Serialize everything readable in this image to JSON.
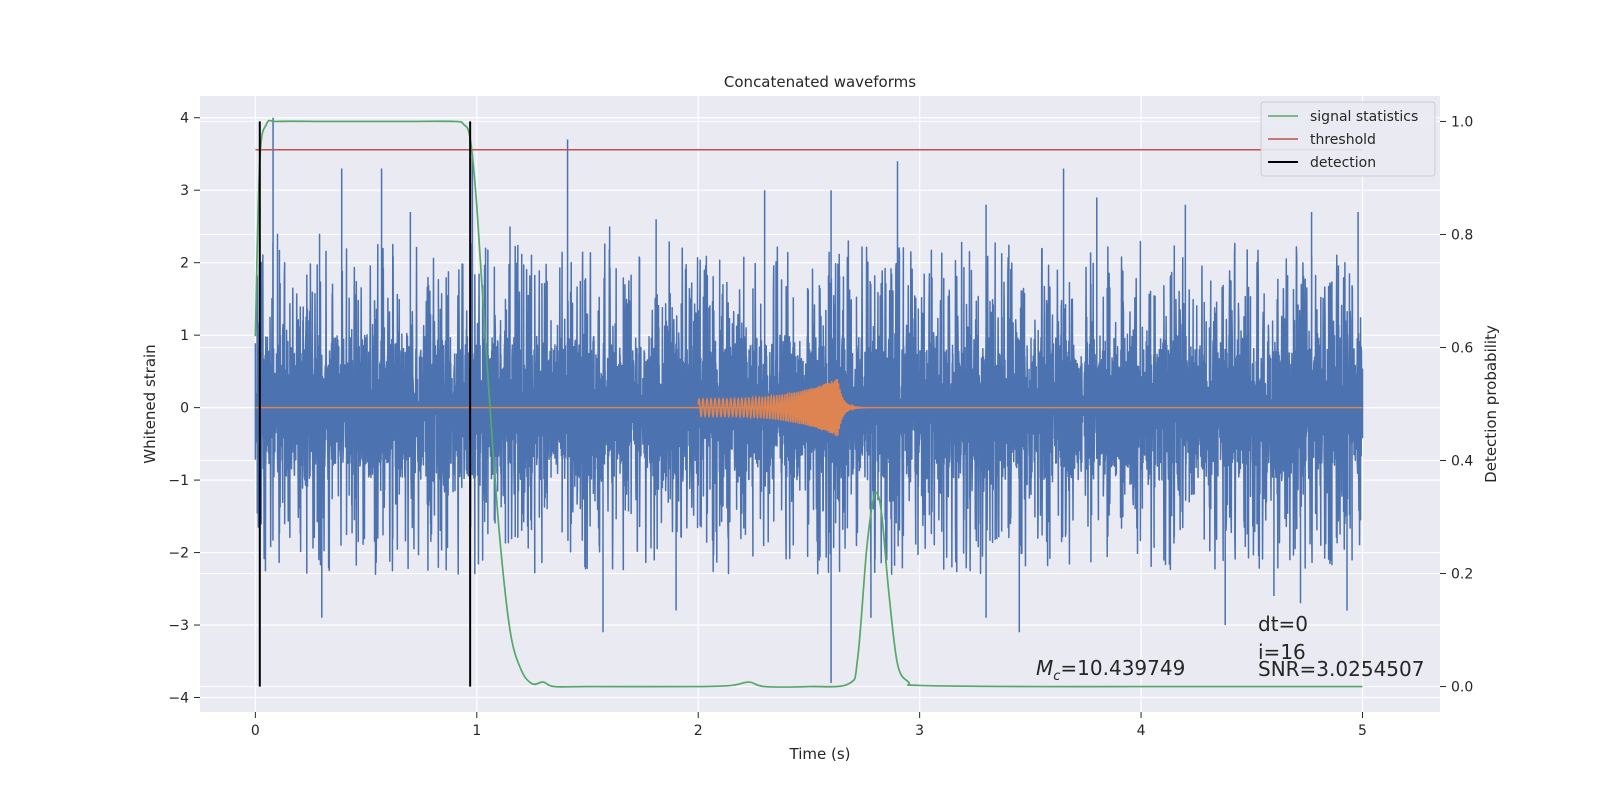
{
  "chart_data": {
    "type": "line",
    "title": "Concatenated waveforms",
    "xlabel": "Time (s)",
    "ylabel_left": "Whitened strain",
    "ylabel_right": "Detection probability",
    "xlim": [
      -0.25,
      5.35
    ],
    "ylim_left": [
      -4.2,
      4.3
    ],
    "ylim_right": [
      -0.045,
      1.045
    ],
    "x_ticks": [
      0,
      1,
      2,
      3,
      4,
      5
    ],
    "x_tick_labels": [
      "0",
      "1",
      "2",
      "3",
      "4",
      "5"
    ],
    "y_left_ticks": [
      4,
      3,
      2,
      1,
      0,
      -1,
      -2,
      -3,
      -4
    ],
    "y_left_tick_labels": [
      "4",
      "3",
      "2",
      "1",
      "0",
      "−1",
      "−2",
      "−3",
      "−4"
    ],
    "y_right_ticks": [
      1.0,
      0.8,
      0.6,
      0.4,
      0.2,
      0.0
    ],
    "y_right_tick_labels": [
      "1.0",
      "0.8",
      "0.6",
      "0.4",
      "0.2",
      "0.0"
    ],
    "grid": true,
    "legend_position": "top-right",
    "colors": {
      "noise": "#4c72b0",
      "waveform": "#dd8452",
      "signal_statistics": "#55a868",
      "threshold": "#c44e52",
      "detection": "#000000",
      "plot_background": "#eaeaf2",
      "grid": "#ffffff"
    },
    "noise_series": {
      "x_range": [
        0,
        5
      ],
      "core_amplitude": 1.0,
      "peaks": [
        {
          "x": 0.02,
          "y": 2.4
        },
        {
          "x": 0.08,
          "y": 4.0
        },
        {
          "x": 0.1,
          "y": 2.4
        },
        {
          "x": 0.29,
          "y": 2.4
        },
        {
          "x": 0.39,
          "y": 3.3
        },
        {
          "x": 0.57,
          "y": 3.3
        },
        {
          "x": 0.7,
          "y": 2.7
        },
        {
          "x": 0.98,
          "y": 3.5
        },
        {
          "x": 1.15,
          "y": 2.5
        },
        {
          "x": 1.41,
          "y": 3.7
        },
        {
          "x": 1.6,
          "y": 2.5
        },
        {
          "x": 1.81,
          "y": 2.6
        },
        {
          "x": 2.3,
          "y": 3.0
        },
        {
          "x": 2.6,
          "y": 3.0
        },
        {
          "x": 2.9,
          "y": 3.4
        },
        {
          "x": 3.3,
          "y": 2.8
        },
        {
          "x": 3.65,
          "y": 3.3
        },
        {
          "x": 3.8,
          "y": 2.9
        },
        {
          "x": 4.2,
          "y": 2.8
        },
        {
          "x": 4.77,
          "y": 2.7
        },
        {
          "x": 4.98,
          "y": 2.7
        }
      ],
      "troughs": [
        {
          "x": 0.02,
          "y": -2.6
        },
        {
          "x": 0.3,
          "y": -2.9
        },
        {
          "x": 0.97,
          "y": -2.8
        },
        {
          "x": 1.57,
          "y": -3.1
        },
        {
          "x": 1.9,
          "y": -2.8
        },
        {
          "x": 2.6,
          "y": -3.8
        },
        {
          "x": 2.78,
          "y": -2.9
        },
        {
          "x": 3.3,
          "y": -2.9
        },
        {
          "x": 3.45,
          "y": -3.1
        },
        {
          "x": 4.38,
          "y": -3.0
        },
        {
          "x": 4.6,
          "y": -2.6
        },
        {
          "x": 4.72,
          "y": -2.7
        },
        {
          "x": 4.93,
          "y": -2.8
        }
      ]
    },
    "waveform_series": {
      "start": 2.0,
      "merger": 2.63,
      "ringdown_end": 2.9,
      "amplitude_start": 0.12,
      "amplitude_peak": 0.4
    },
    "signal_statistics": {
      "x": [
        0.0,
        0.02,
        0.05,
        0.1,
        0.3,
        0.5,
        0.7,
        0.9,
        0.94,
        0.97,
        1.0,
        1.05,
        1.1,
        1.15,
        1.2,
        1.25,
        1.3,
        1.35,
        1.5,
        2.0,
        2.15,
        2.23,
        2.3,
        2.5,
        2.68,
        2.72,
        2.76,
        2.79,
        2.81,
        2.83,
        2.86,
        2.9,
        2.95,
        3.0,
        3.5,
        4.0,
        4.5,
        5.0
      ],
      "y": [
        0.62,
        0.93,
        0.995,
        1.0,
        1.0,
        1.0,
        1.0,
        1.0,
        0.995,
        0.97,
        0.85,
        0.55,
        0.28,
        0.1,
        0.03,
        0.005,
        0.008,
        0.0,
        0.0,
        0.0,
        0.002,
        0.008,
        0.0,
        0.0,
        0.005,
        0.05,
        0.24,
        0.33,
        0.34,
        0.3,
        0.17,
        0.04,
        0.008,
        0.002,
        0.0,
        0.0,
        0.0,
        0.0
      ]
    },
    "threshold": {
      "value": 0.95,
      "x_range": [
        0,
        5
      ]
    },
    "detections": [
      {
        "x": 0.02,
        "y_range": [
          0.0,
          1.0
        ]
      },
      {
        "x": 0.97,
        "y_range": [
          0.0,
          1.0
        ]
      }
    ],
    "legend": [
      "signal statistics",
      "threshold",
      "detection"
    ],
    "annotations": {
      "mc_symbol": "M",
      "mc_subscript": "c",
      "mc_value": "=10.439749",
      "dt": "dt=0",
      "i": "i=16",
      "snr": "SNR=3.0254507"
    }
  }
}
